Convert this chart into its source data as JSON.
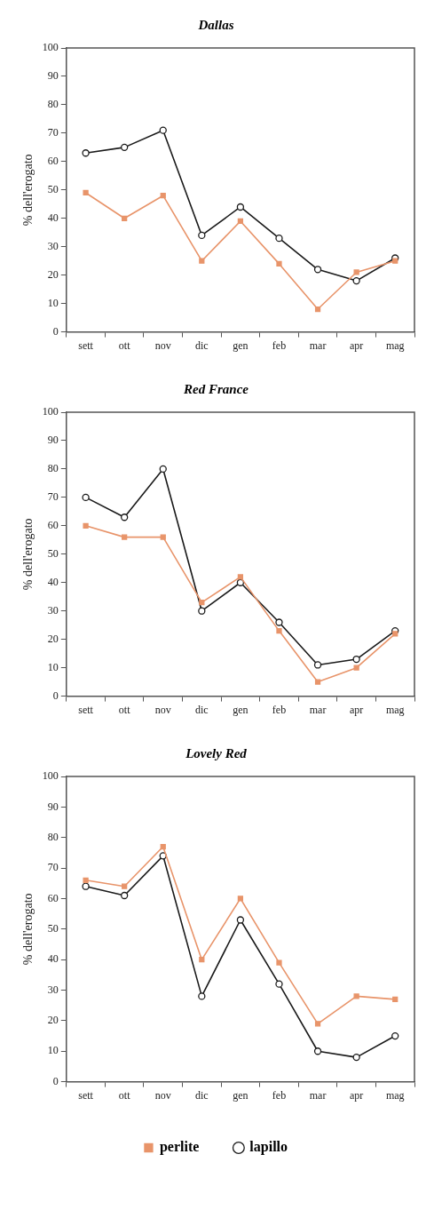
{
  "chart_data": [
    {
      "type": "line",
      "title": "Dallas",
      "ylabel": "% dell'erogato",
      "categories": [
        "sett",
        "ott",
        "nov",
        "dic",
        "gen",
        "feb",
        "mar",
        "apr",
        "mag"
      ],
      "ylim": [
        0,
        100
      ],
      "yticks": [
        0,
        10,
        20,
        30,
        40,
        50,
        60,
        70,
        80,
        90,
        100
      ],
      "grid": false,
      "legend": false,
      "series": [
        {
          "color": "#e8946a",
          "marker": "square",
          "values": [
            49,
            40,
            48,
            25,
            39,
            24,
            8,
            21,
            25
          ]
        },
        {
          "color": "#1a1a1a",
          "marker": "circle",
          "values": [
            63,
            65,
            71,
            34,
            44,
            33,
            22,
            18,
            26
          ]
        }
      ]
    },
    {
      "type": "line",
      "title": "Red France",
      "ylabel": "% dell'erogato",
      "categories": [
        "sett",
        "ott",
        "nov",
        "dic",
        "gen",
        "feb",
        "mar",
        "apr",
        "mag"
      ],
      "ylim": [
        0,
        100
      ],
      "yticks": [
        0,
        10,
        20,
        30,
        40,
        50,
        60,
        70,
        80,
        90,
        100
      ],
      "grid": false,
      "legend": false,
      "series": [
        {
          "color": "#e8946a",
          "marker": "square",
          "values": [
            60,
            56,
            56,
            33,
            42,
            23,
            5,
            10,
            22
          ]
        },
        {
          "color": "#1a1a1a",
          "marker": "circle",
          "values": [
            70,
            63,
            80,
            30,
            40,
            26,
            11,
            13,
            23
          ]
        }
      ]
    },
    {
      "type": "line",
      "title": "Lovely Red",
      "ylabel": "% dell'erogato",
      "categories": [
        "sett",
        "ott",
        "nov",
        "dic",
        "gen",
        "feb",
        "mar",
        "apr",
        "mag"
      ],
      "ylim": [
        0,
        100
      ],
      "yticks": [
        0,
        10,
        20,
        30,
        40,
        50,
        60,
        70,
        80,
        90,
        100
      ],
      "grid": false,
      "legend": "bottom",
      "series": [
        {
          "name": "perlite",
          "color": "#e8946a",
          "marker": "square",
          "values": [
            66,
            64,
            77,
            40,
            60,
            39,
            19,
            28,
            27
          ]
        },
        {
          "name": "lapillo",
          "color": "#1a1a1a",
          "marker": "circle",
          "values": [
            64,
            61,
            74,
            28,
            53,
            32,
            10,
            8,
            15
          ]
        }
      ]
    }
  ]
}
